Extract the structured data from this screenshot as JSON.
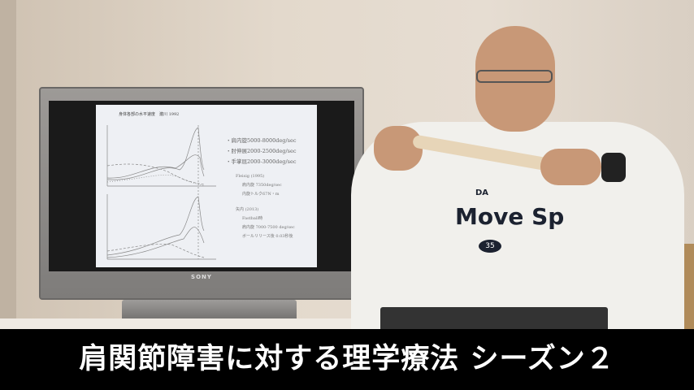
{
  "caption": "肩関節障害に対する理学療法 シーズン２",
  "tv": {
    "brand": "SONY",
    "slide": {
      "title": "身体各部の水平速度　瀧川 1992",
      "bullets": [
        "・肩内旋5000-8000deg/sec",
        "・肘伸展2000-2500deg/sec",
        "・手掌屈2000-3000deg/sec"
      ],
      "refs": [
        {
          "author": "Fleisig (1995)",
          "lines": [
            "肩内旋 7350deg/sec",
            "内旋トルク67N・m"
          ]
        },
        {
          "author": "矢内 (2013)",
          "lines": [
            "Fastball時",
            "肩内旋 7000-7500 deg/sec",
            "ボールリリース後 0.03秒後"
          ]
        }
      ]
    }
  },
  "shirt": {
    "logo": "DA",
    "text": "Move Sp",
    "badge": "35"
  },
  "colors": {
    "caption_bg": "#000000",
    "caption_text": "#ffffff",
    "wall": "#e3d9cc"
  }
}
